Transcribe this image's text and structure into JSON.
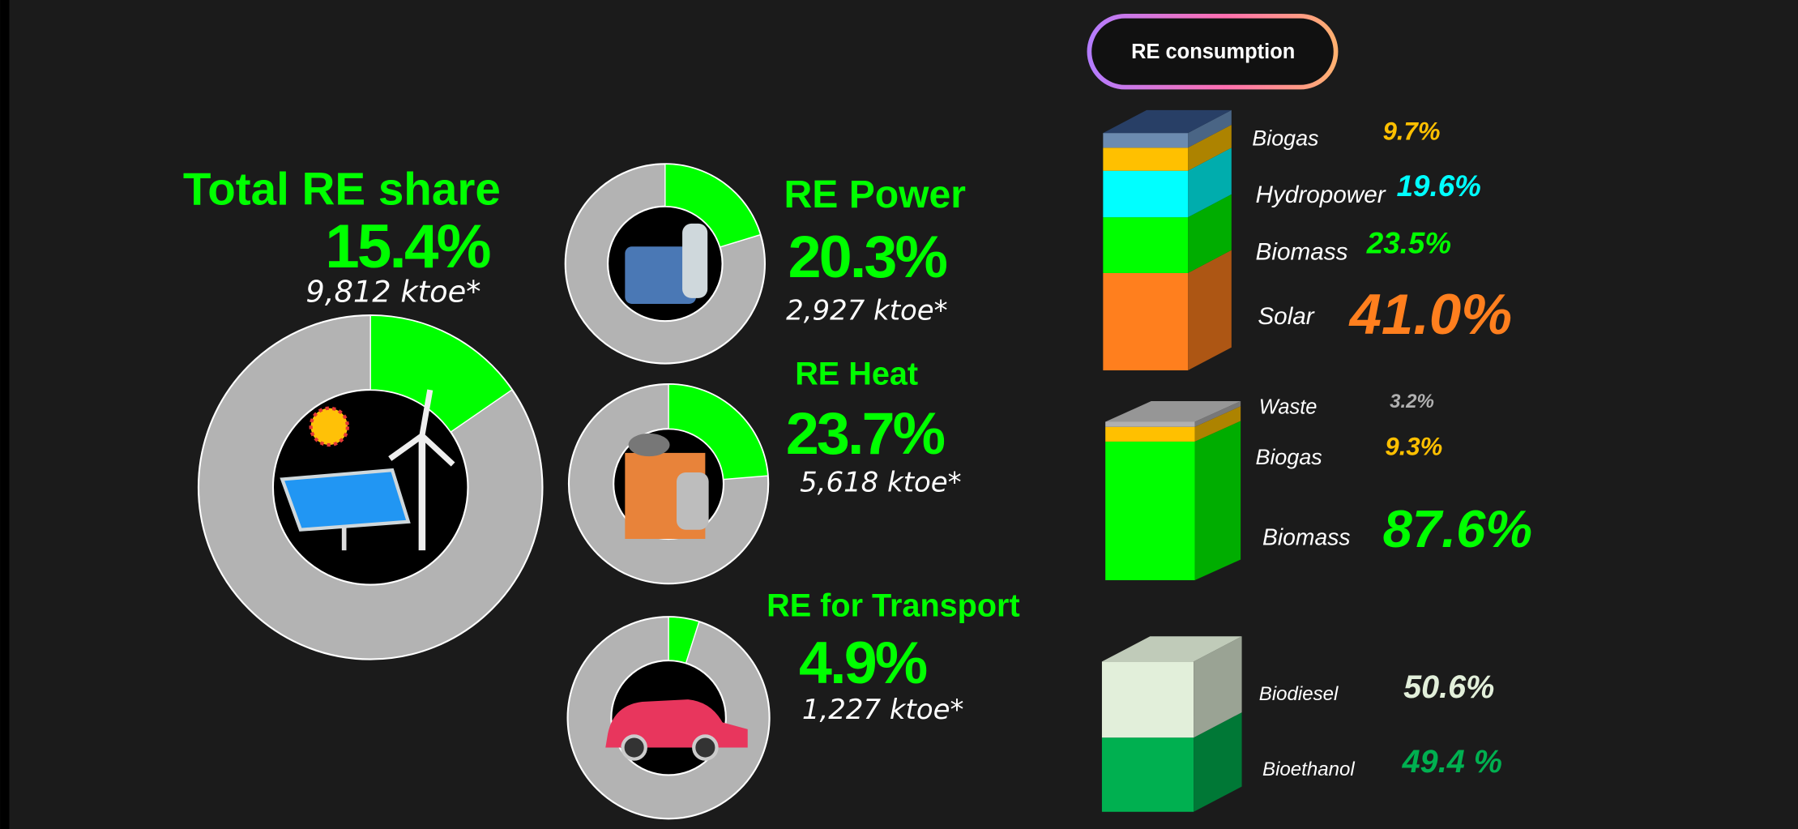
{
  "heading": "RE consumption",
  "chart_data": [
    {
      "type": "donut",
      "title": "Total RE share",
      "values": [
        15.4
      ],
      "value_labels": [
        "15.4%"
      ],
      "annotation": "9,812 ktoe*",
      "color": "#00ff00"
    },
    {
      "type": "donut",
      "title": "RE Power",
      "values": [
        20.3
      ],
      "value_labels": [
        "20.3%"
      ],
      "annotation": "2,927 ktoe*",
      "color": "#00ff00"
    },
    {
      "type": "donut",
      "title": "RE Heat",
      "values": [
        23.7
      ],
      "value_labels": [
        "23.7%"
      ],
      "annotation": "5,618 ktoe*",
      "color": "#00ff00"
    },
    {
      "type": "donut",
      "title": "RE for Transport",
      "values": [
        4.9
      ],
      "value_labels": [
        "4.9%"
      ],
      "annotation": "1,227 ktoe*",
      "color": "#00ff00"
    },
    {
      "type": "stacked-bar",
      "ylim": [
        0,
        100
      ],
      "series": [
        {
          "name": "Solar",
          "color": "#ff7f1e",
          "values": [
            41.0
          ],
          "value_labels": [
            "41.0%"
          ]
        },
        {
          "name": "Biomass",
          "color": "#00ff00",
          "values": [
            23.5
          ],
          "value_labels": [
            "23.5%"
          ]
        },
        {
          "name": "Hydropower",
          "color": "#00ffff",
          "values": [
            19.6
          ],
          "value_labels": [
            "19.6%"
          ]
        },
        {
          "name": "Biogas",
          "color": "#ffc000",
          "values": [
            9.7
          ],
          "value_labels": [
            "9.7%"
          ]
        }
      ]
    },
    {
      "type": "stacked-bar",
      "ylim": [
        0,
        100
      ],
      "series": [
        {
          "name": "Biomass",
          "color": "#00ff00",
          "values": [
            87.6
          ],
          "value_labels": [
            "87.6%"
          ]
        },
        {
          "name": "Biogas",
          "color": "#ffc000",
          "values": [
            9.3
          ],
          "value_labels": [
            "9.3%"
          ]
        },
        {
          "name": "Waste",
          "color": "#b0b0b0",
          "values": [
            3.2
          ],
          "value_labels": [
            "3.2%"
          ]
        }
      ]
    },
    {
      "type": "stacked-bar",
      "ylim": [
        0,
        100
      ],
      "series": [
        {
          "name": "Bioethanol",
          "color": "#00b050",
          "values": [
            49.4
          ],
          "value_labels": [
            "49.4 %"
          ]
        },
        {
          "name": "Biodiesel",
          "color": "#e2efda",
          "values": [
            50.6
          ],
          "value_labels": [
            "50.6%"
          ]
        }
      ]
    }
  ]
}
